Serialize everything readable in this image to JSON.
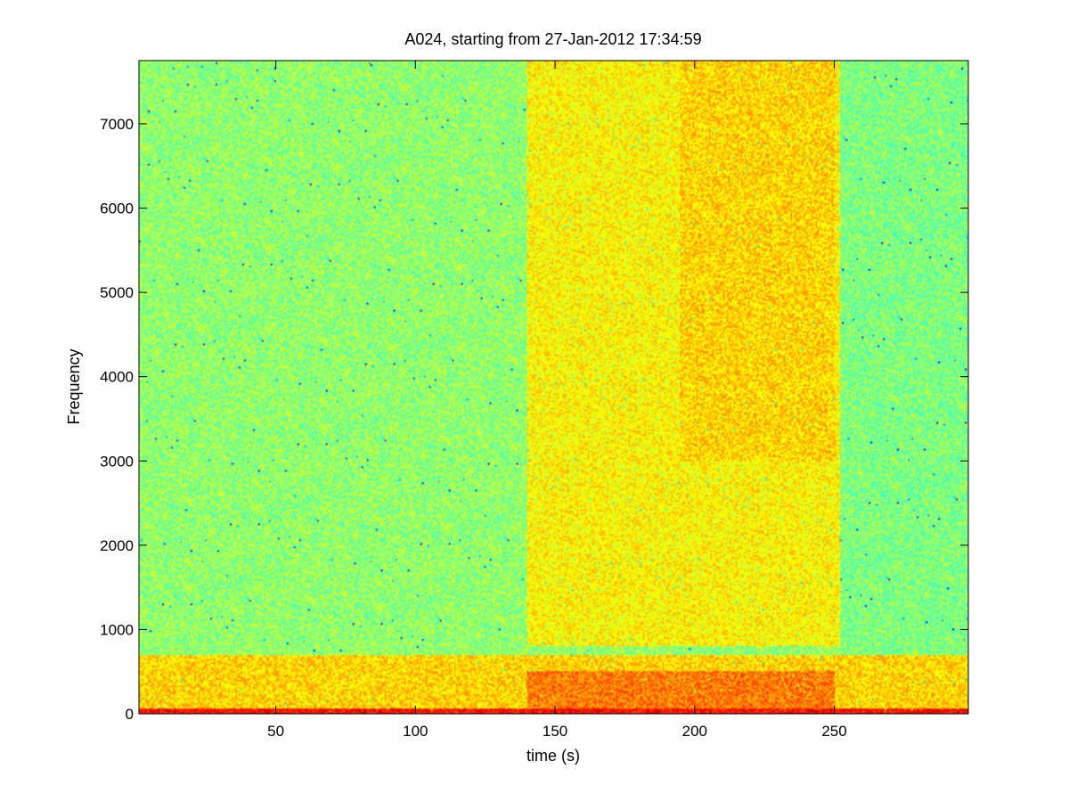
{
  "chart_data": {
    "type": "heatmap",
    "title": "A024, starting from 27-Jan-2012 17:34:59",
    "xlabel": "time (s)",
    "ylabel": "Frequency",
    "xlim": [
      1,
      298
    ],
    "ylim": [
      0,
      7750
    ],
    "xticks": [
      50,
      100,
      150,
      200,
      250
    ],
    "yticks": [
      0,
      1000,
      2000,
      3000,
      4000,
      5000,
      6000,
      7000
    ],
    "grid": false,
    "colormap": "jet",
    "colormap_colors": [
      "#00008f",
      "#0000ff",
      "#00ffff",
      "#80ff80",
      "#ffff00",
      "#ff8000",
      "#ff0000",
      "#800000"
    ],
    "regions": [
      {
        "x_range": [
          1,
          140
        ],
        "y_range": [
          1000,
          7750
        ],
        "level": 0.45
      },
      {
        "x_range": [
          140,
          252
        ],
        "y_range": [
          800,
          7750
        ],
        "level": 0.58
      },
      {
        "x_range": [
          195,
          250
        ],
        "y_range": [
          3000,
          7750
        ],
        "level": 0.62
      },
      {
        "x_range": [
          252,
          298
        ],
        "y_range": [
          700,
          7750
        ],
        "level": 0.43
      },
      {
        "x_range": [
          1,
          298
        ],
        "y_range": [
          0,
          700
        ],
        "level": 0.62
      },
      {
        "x_range": [
          140,
          250
        ],
        "y_range": [
          0,
          500
        ],
        "level": 0.72
      },
      {
        "x_range": [
          1,
          298
        ],
        "y_range": [
          0,
          60
        ],
        "level": 0.85
      }
    ]
  }
}
